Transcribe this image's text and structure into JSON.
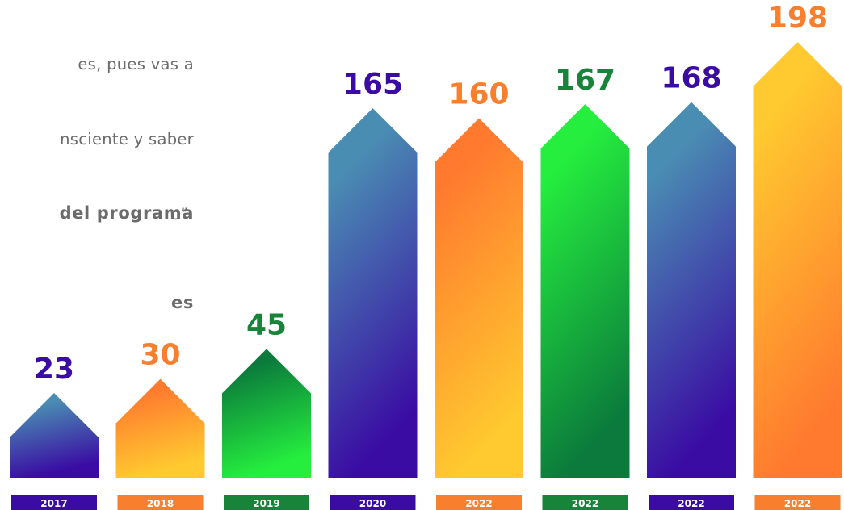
{
  "text_block": {
    "lines": [
      "es, pues vas a",
      "nsciente y saber",
      "o”."
    ],
    "heading_lines": [
      "del programa",
      "es"
    ]
  },
  "chart_data": {
    "type": "bar",
    "categories": [
      "2017",
      "2018",
      "2019",
      "2020",
      "2022",
      "2022",
      "2022",
      "2022"
    ],
    "values": [
      23,
      30,
      45,
      165,
      160,
      167,
      168,
      198
    ],
    "value_label_colors": [
      "#3a0ca3",
      "#f77f2e",
      "#17843a",
      "#3a0ca3",
      "#f77f2e",
      "#17843a",
      "#3a0ca3",
      "#f77f2e"
    ],
    "tag_colors": [
      "#3a0ca3",
      "#f77f2e",
      "#17843a",
      "#3a0ca3",
      "#f77f2e",
      "#17843a",
      "#3a0ca3",
      "#f77f2e"
    ],
    "gradients": [
      [
        "#4a8db3",
        "#3a0ca3"
      ],
      [
        "#ff7a2f",
        "#ffca2f"
      ],
      [
        "#0b7a3c",
        "#25ee3e"
      ],
      [
        "#4a8db3",
        "#3a0ca3"
      ],
      [
        "#ff7a2f",
        "#ffca2f"
      ],
      [
        "#25ee3e",
        "#0b7a3c"
      ],
      [
        "#4a8db3",
        "#3a0ca3"
      ],
      [
        "#ffca2f",
        "#ff7a2f"
      ]
    ],
    "arrow_shape": "upward arrow bars",
    "axes": "none",
    "grid": false,
    "legend": "none"
  }
}
